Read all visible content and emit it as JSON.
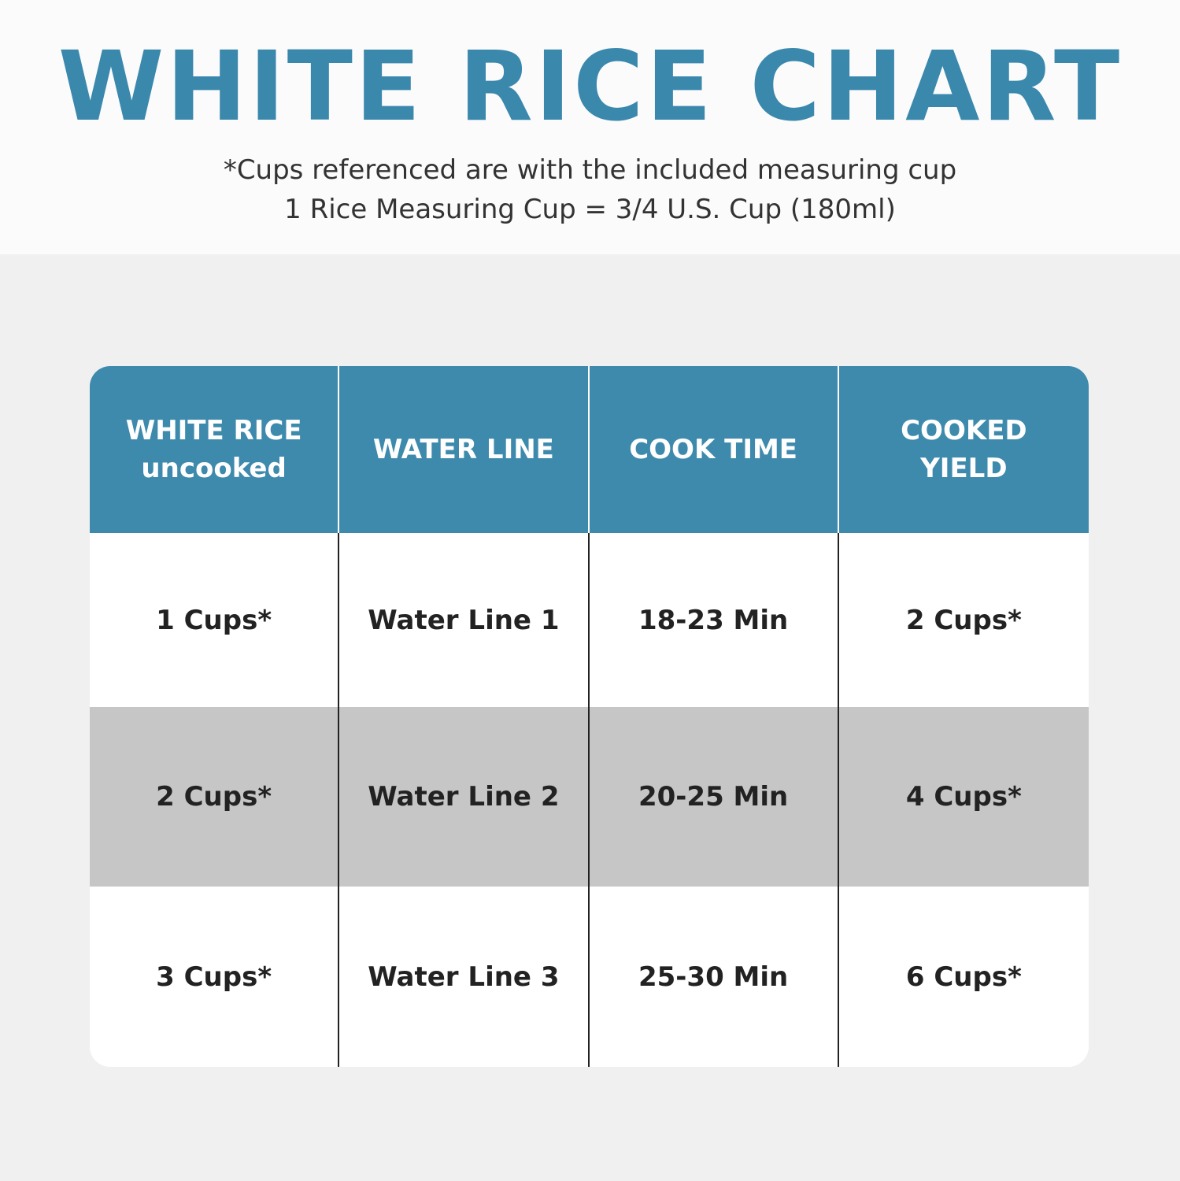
{
  "title": "WHITE RICE CHART",
  "notes": [
    "*Cups referenced are with the included measuring cup",
    "1 Rice Measuring Cup = 3/4 U.S. Cup (180ml)"
  ],
  "colors": {
    "accent": "#3e8aad",
    "shaded_row": "#c6c6c6"
  },
  "table": {
    "headers": [
      [
        "WHITE RICE",
        "uncooked"
      ],
      [
        "WATER LINE"
      ],
      [
        "COOK TIME"
      ],
      [
        "COOKED",
        "YIELD"
      ]
    ],
    "rows": [
      [
        "1 Cups*",
        "Water Line 1",
        "18-23 Min",
        "2 Cups*"
      ],
      [
        "2 Cups*",
        "Water Line 2",
        "20-25 Min",
        "4 Cups*"
      ],
      [
        "3 Cups*",
        "Water Line 3",
        "25-30 Min",
        "6 Cups*"
      ]
    ]
  }
}
